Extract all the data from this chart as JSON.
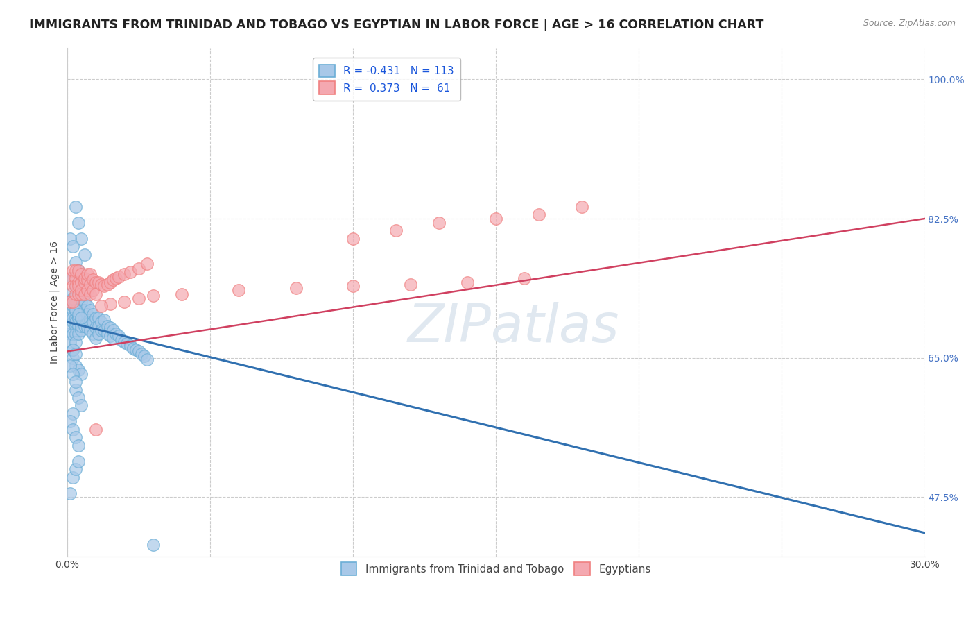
{
  "title": "IMMIGRANTS FROM TRINIDAD AND TOBAGO VS EGYPTIAN IN LABOR FORCE | AGE > 16 CORRELATION CHART",
  "source": "Source: ZipAtlas.com",
  "ylabel": "In Labor Force | Age > 16",
  "xlim": [
    0.0,
    0.3
  ],
  "ylim": [
    0.4,
    1.04
  ],
  "xticks": [
    0.0,
    0.05,
    0.1,
    0.15,
    0.2,
    0.25,
    0.3
  ],
  "xticklabels": [
    "0.0%",
    "",
    "",
    "",
    "",
    "",
    "30.0%"
  ],
  "yticks_right": [
    1.0,
    0.825,
    0.65,
    0.475
  ],
  "ytick_right_labels": [
    "100.0%",
    "82.5%",
    "65.0%",
    "47.5%"
  ],
  "blue_color": "#a8c8e8",
  "pink_color": "#f4a8b0",
  "blue_edge_color": "#6baed6",
  "pink_edge_color": "#f08080",
  "blue_line_color": "#3070b0",
  "pink_line_color": "#d04060",
  "legend_label1": "R = -0.431   N = 113",
  "legend_label2": "R =  0.373   N =  61",
  "label1": "Immigrants from Trinidad and Tobago",
  "label2": "Egyptians",
  "watermark": "ZIPatlas",
  "blue_scatter_x": [
    0.001,
    0.001,
    0.001,
    0.001,
    0.002,
    0.002,
    0.002,
    0.002,
    0.002,
    0.002,
    0.003,
    0.003,
    0.003,
    0.003,
    0.003,
    0.003,
    0.003,
    0.004,
    0.004,
    0.004,
    0.004,
    0.004,
    0.004,
    0.005,
    0.005,
    0.005,
    0.005,
    0.005,
    0.006,
    0.006,
    0.006,
    0.006,
    0.007,
    0.007,
    0.007,
    0.007,
    0.008,
    0.008,
    0.008,
    0.008,
    0.009,
    0.009,
    0.009,
    0.009,
    0.01,
    0.01,
    0.01,
    0.011,
    0.011,
    0.011,
    0.012,
    0.012,
    0.013,
    0.013,
    0.014,
    0.014,
    0.015,
    0.015,
    0.016,
    0.016,
    0.017,
    0.018,
    0.019,
    0.02,
    0.021,
    0.022,
    0.023,
    0.024,
    0.025,
    0.026,
    0.027,
    0.028,
    0.03,
    0.003,
    0.004,
    0.005,
    0.006,
    0.003,
    0.004,
    0.005,
    0.002,
    0.003,
    0.004,
    0.002,
    0.003,
    0.004,
    0.005,
    0.003,
    0.004,
    0.005,
    0.002,
    0.001,
    0.002,
    0.003,
    0.004,
    0.001,
    0.002,
    0.003,
    0.001,
    0.002,
    0.003,
    0.004,
    0.005,
    0.001,
    0.002,
    0.002,
    0.003,
    0.004,
    0.002,
    0.003,
    0.001,
    0.002,
    0.001
  ],
  "blue_scatter_y": [
    0.68,
    0.7,
    0.69,
    0.67,
    0.71,
    0.695,
    0.68,
    0.7,
    0.72,
    0.66,
    0.72,
    0.7,
    0.69,
    0.71,
    0.68,
    0.695,
    0.67,
    0.715,
    0.7,
    0.69,
    0.71,
    0.68,
    0.7,
    0.72,
    0.7,
    0.685,
    0.71,
    0.69,
    0.72,
    0.7,
    0.69,
    0.71,
    0.715,
    0.7,
    0.688,
    0.705,
    0.71,
    0.698,
    0.685,
    0.695,
    0.705,
    0.692,
    0.68,
    0.695,
    0.7,
    0.688,
    0.675,
    0.7,
    0.69,
    0.68,
    0.695,
    0.685,
    0.698,
    0.685,
    0.69,
    0.68,
    0.688,
    0.678,
    0.685,
    0.675,
    0.68,
    0.678,
    0.672,
    0.67,
    0.668,
    0.665,
    0.662,
    0.66,
    0.658,
    0.655,
    0.652,
    0.648,
    0.415,
    0.84,
    0.82,
    0.8,
    0.78,
    0.77,
    0.76,
    0.75,
    0.75,
    0.74,
    0.73,
    0.65,
    0.64,
    0.635,
    0.63,
    0.61,
    0.6,
    0.59,
    0.58,
    0.57,
    0.56,
    0.55,
    0.54,
    0.64,
    0.63,
    0.62,
    0.72,
    0.715,
    0.71,
    0.705,
    0.7,
    0.73,
    0.725,
    0.5,
    0.51,
    0.52,
    0.66,
    0.655,
    0.8,
    0.79,
    0.48
  ],
  "pink_scatter_x": [
    0.001,
    0.001,
    0.002,
    0.002,
    0.002,
    0.003,
    0.003,
    0.003,
    0.003,
    0.004,
    0.004,
    0.004,
    0.004,
    0.005,
    0.005,
    0.005,
    0.005,
    0.006,
    0.006,
    0.006,
    0.007,
    0.007,
    0.007,
    0.008,
    0.008,
    0.008,
    0.009,
    0.009,
    0.01,
    0.01,
    0.011,
    0.012,
    0.013,
    0.014,
    0.015,
    0.016,
    0.017,
    0.018,
    0.02,
    0.022,
    0.025,
    0.028,
    0.1,
    0.115,
    0.13,
    0.15,
    0.165,
    0.18,
    0.16,
    0.14,
    0.12,
    0.1,
    0.08,
    0.06,
    0.04,
    0.03,
    0.025,
    0.02,
    0.015,
    0.012,
    0.01
  ],
  "pink_scatter_y": [
    0.72,
    0.75,
    0.74,
    0.72,
    0.76,
    0.75,
    0.73,
    0.76,
    0.74,
    0.745,
    0.73,
    0.76,
    0.74,
    0.745,
    0.73,
    0.755,
    0.735,
    0.745,
    0.73,
    0.75,
    0.748,
    0.735,
    0.755,
    0.742,
    0.73,
    0.755,
    0.748,
    0.735,
    0.745,
    0.73,
    0.745,
    0.742,
    0.74,
    0.742,
    0.745,
    0.748,
    0.75,
    0.752,
    0.755,
    0.758,
    0.762,
    0.768,
    0.8,
    0.81,
    0.82,
    0.825,
    0.83,
    0.84,
    0.75,
    0.745,
    0.742,
    0.74,
    0.738,
    0.735,
    0.73,
    0.728,
    0.725,
    0.72,
    0.718,
    0.715,
    0.56
  ],
  "blue_line_x": [
    0.0,
    0.3
  ],
  "blue_line_y": [
    0.695,
    0.43
  ],
  "pink_line_x": [
    0.0,
    0.3
  ],
  "pink_line_y": [
    0.658,
    0.825
  ],
  "grid_color": "#cccccc",
  "background_color": "#ffffff",
  "title_fontsize": 12.5,
  "axis_label_fontsize": 10,
  "tick_fontsize": 10,
  "right_tick_color": "#4472c4",
  "watermark_color": "#e0e8f0",
  "watermark_fontsize": 55
}
